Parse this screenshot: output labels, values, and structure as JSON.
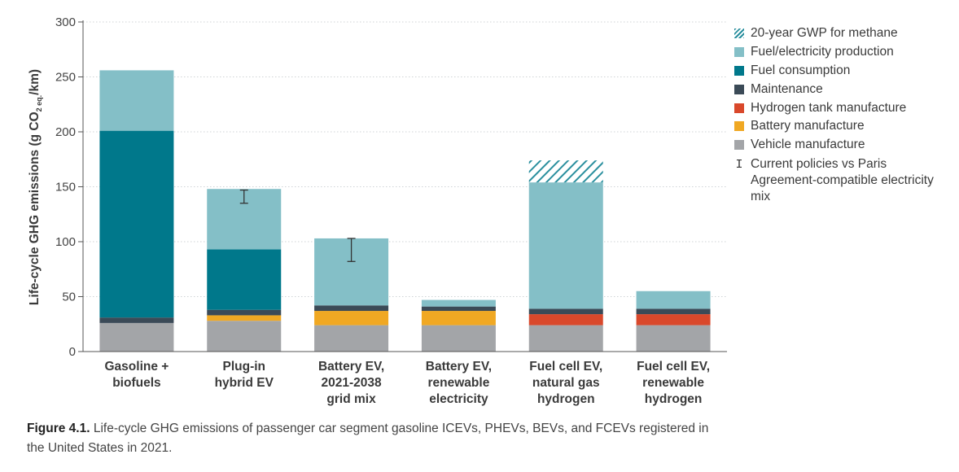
{
  "chart_data": {
    "type": "bar",
    "stacked": true,
    "ylabel_parts": [
      "Life-cycle GHG emissions (g CO",
      "2 eq.",
      "/km)"
    ],
    "ylim": [
      0,
      300
    ],
    "yticks": [
      0,
      50,
      100,
      150,
      200,
      250,
      300
    ],
    "grid": true,
    "legend_position": "right",
    "categories": [
      [
        "Gasoline +",
        "biofuels"
      ],
      [
        "Plug-in",
        "hybrid EV"
      ],
      [
        "Battery EV,",
        "2021-2038",
        "grid mix"
      ],
      [
        "Battery EV,",
        "renewable",
        "electricity"
      ],
      [
        "Fuel cell EV,",
        "natural gas",
        "hydrogen"
      ],
      [
        "Fuel cell EV,",
        "renewable",
        "hydrogen"
      ]
    ],
    "series": [
      {
        "name": "Vehicle manufacture",
        "color": "#a3a5a8",
        "values": [
          26,
          28,
          24,
          24,
          24,
          24
        ]
      },
      {
        "name": "Battery manufacture",
        "color": "#f0a823",
        "values": [
          0,
          5,
          13,
          13,
          0,
          0
        ]
      },
      {
        "name": "Hydrogen tank manufacture",
        "color": "#d9482b",
        "values": [
          0,
          0,
          0,
          0,
          10,
          10
        ]
      },
      {
        "name": "Maintenance",
        "color": "#3b4a57",
        "values": [
          5,
          5,
          5,
          4,
          5,
          5
        ]
      },
      {
        "name": "Fuel consumption",
        "color": "#00788b",
        "values": [
          170,
          55,
          0,
          0,
          0,
          0
        ]
      },
      {
        "name": "Fuel/electricity production",
        "color": "#84bfc7",
        "values": [
          55,
          55,
          61,
          6,
          115,
          16
        ]
      },
      {
        "name": "20-year GWP for methane",
        "color": "#2a8f9e",
        "hatched": true,
        "values": [
          0,
          0,
          0,
          0,
          20,
          0
        ]
      }
    ],
    "error_bars": [
      null,
      [
        135,
        147
      ],
      [
        82,
        103
      ],
      null,
      null,
      null
    ],
    "error_bar_legend": "Current policies vs Paris Agreement-compatible electricity mix"
  },
  "legend": [
    {
      "label": "20-year GWP for methane",
      "color": "#2a8f9e",
      "hatched": true
    },
    {
      "label": "Fuel/electricity production",
      "color": "#84bfc7"
    },
    {
      "label": "Fuel consumption",
      "color": "#00788b"
    },
    {
      "label": "Maintenance",
      "color": "#3b4a57"
    },
    {
      "label": "Hydrogen tank manufacture",
      "color": "#d9482b"
    },
    {
      "label": "Battery manufacture",
      "color": "#f0a823"
    },
    {
      "label": "Vehicle manufacture",
      "color": "#a3a5a8"
    }
  ],
  "error_legend": {
    "glyph": "I",
    "label": "Current policies vs Paris Agreement-compatible electricity mix"
  },
  "caption": {
    "label": "Figure 4.1.",
    "text": " Life-cycle GHG emissions of passenger car segment gasoline ICEVs, PHEVs, BEVs, and FCEVs registered in the United States in 2021."
  }
}
